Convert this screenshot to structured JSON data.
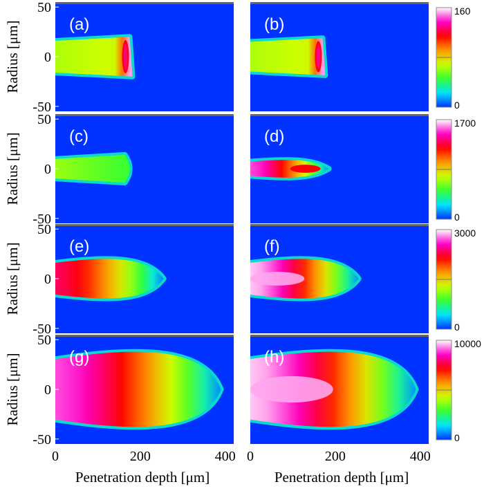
{
  "chart_data": {
    "type": "heatmap",
    "xlabel": "Penetration depth [μm]",
    "ylabel": "Radius [μm]",
    "x_ticks": [
      "0",
      "200",
      "400"
    ],
    "y_ticks": [
      "50",
      "0",
      "-50"
    ],
    "xlim": [
      0,
      420
    ],
    "ylim": [
      -55,
      55
    ],
    "rows": [
      {
        "colorbar": {
          "max_label": "160",
          "mid_label": "",
          "min_label": "0",
          "max": 160
        },
        "panels": [
          {
            "label": "(a)",
            "length": 175,
            "width": 16,
            "peak": 0.95,
            "hotspot": "edge"
          },
          {
            "label": "(b)",
            "length": 170,
            "width": 15,
            "peak": 0.95,
            "hotspot": "edge"
          }
        ]
      },
      {
        "colorbar": {
          "max_label": "1700",
          "mid_label": "",
          "min_label": "0",
          "max": 1700
        },
        "panels": [
          {
            "label": "(c)",
            "length": 180,
            "width": 14,
            "peak": 0.38,
            "hotspot": "none"
          },
          {
            "label": "(d)",
            "length": 185,
            "width": 9,
            "peak": 0.9,
            "hotspot": "inner"
          }
        ]
      },
      {
        "colorbar": {
          "max_label": "3000",
          "mid_label": "",
          "min_label": "0",
          "max": 3000
        },
        "panels": [
          {
            "label": "(e)",
            "length": 255,
            "width": 20,
            "peak": 0.78,
            "hotspot": "core"
          },
          {
            "label": "(f)",
            "length": 255,
            "width": 20,
            "peak": 0.97,
            "hotspot": "core"
          }
        ]
      },
      {
        "colorbar": {
          "max_label": "10000",
          "mid_label": "",
          "min_label": "0",
          "max": 10000
        },
        "panels": [
          {
            "label": "(g)",
            "length": 390,
            "width": 38,
            "peak": 0.9,
            "hotspot": "core"
          },
          {
            "label": "(h)",
            "length": 390,
            "width": 38,
            "peak": 0.97,
            "hotspot": "core"
          }
        ]
      }
    ],
    "colormap": [
      "#0033ff",
      "#00e5ff",
      "#33ff33",
      "#ccff00",
      "#ff9900",
      "#ff0000",
      "#ff00cc",
      "#ffffff"
    ]
  }
}
